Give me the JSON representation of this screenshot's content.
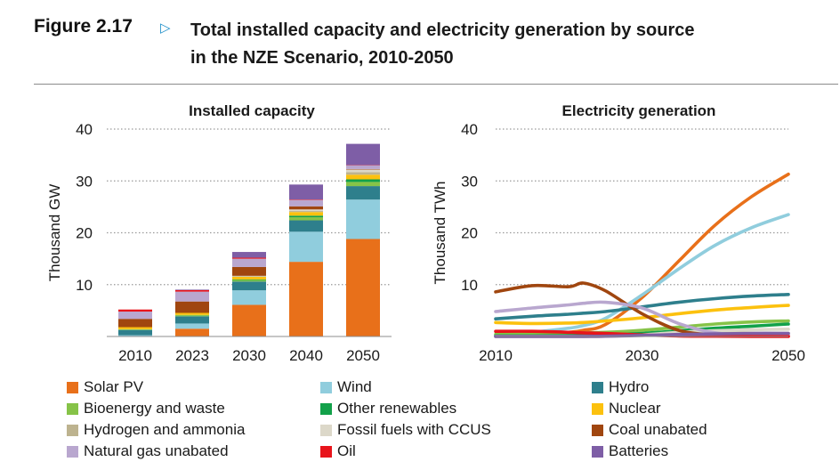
{
  "figure": {
    "label": "Figure 2.17",
    "title_line1": "Total installed capacity and electricity generation by source",
    "title_line2": "in the NZE Scenario, 2010-2050",
    "arrow_color": "#1f8fc9"
  },
  "colors": {
    "Solar PV": "#e8701a",
    "Wind": "#90cddd",
    "Hydro": "#2e7f8c",
    "Bioenergy and waste": "#86c348",
    "Other renewables": "#12a14a",
    "Nuclear": "#fcc10e",
    "Hydrogen and ammonia": "#bdb38f",
    "Fossil fuels with CCUS": "#dcd8c9",
    "Coal unabated": "#a0460f",
    "Natural gas unabated": "#b9a7cf",
    "Oil": "#e8141b",
    "Batteries": "#7e5ea6"
  },
  "legend": [
    "Solar PV",
    "Wind",
    "Hydro",
    "Bioenergy and waste",
    "Other renewables",
    "Nuclear",
    "Hydrogen and ammonia",
    "Fossil fuels with CCUS",
    "Coal unabated",
    "Natural gas unabated",
    "Oil",
    "Batteries"
  ],
  "chart_data": [
    {
      "type": "bar",
      "stacked": true,
      "title": "Installed capacity",
      "ylabel": "Thousand GW",
      "ylim": [
        0,
        40
      ],
      "yticks": [
        10,
        20,
        30,
        40
      ],
      "grid": "dotted horizontal",
      "categories": [
        "2010",
        "2023",
        "2030",
        "2040",
        "2050"
      ],
      "series": [
        {
          "name": "Solar PV",
          "values": [
            0.05,
            1.5,
            6.1,
            14.4,
            18.8
          ]
        },
        {
          "name": "Wind",
          "values": [
            0.2,
            1.0,
            2.8,
            5.8,
            7.6
          ]
        },
        {
          "name": "Hydro",
          "values": [
            1.0,
            1.4,
            1.7,
            2.2,
            2.6
          ]
        },
        {
          "name": "Bioenergy and waste",
          "values": [
            0.1,
            0.2,
            0.3,
            0.6,
            0.8
          ]
        },
        {
          "name": "Other renewables",
          "values": [
            0.05,
            0.05,
            0.1,
            0.3,
            0.5
          ]
        },
        {
          "name": "Nuclear",
          "values": [
            0.4,
            0.4,
            0.5,
            0.7,
            0.9
          ]
        },
        {
          "name": "Hydrogen and ammonia",
          "values": [
            0.0,
            0.0,
            0.1,
            0.2,
            0.5
          ]
        },
        {
          "name": "Fossil fuels with CCUS",
          "values": [
            0.0,
            0.0,
            0.1,
            0.3,
            0.5
          ]
        },
        {
          "name": "Coal unabated",
          "values": [
            1.6,
            2.2,
            1.7,
            0.6,
            0.1
          ]
        },
        {
          "name": "Natural gas unabated",
          "values": [
            1.4,
            1.9,
            1.6,
            1.2,
            0.7
          ]
        },
        {
          "name": "Oil",
          "values": [
            0.4,
            0.3,
            0.2,
            0.1,
            0.05
          ]
        },
        {
          "name": "Batteries",
          "values": [
            0.0,
            0.1,
            1.1,
            2.9,
            4.1
          ]
        }
      ]
    },
    {
      "type": "line",
      "title": "Electricity generation",
      "ylabel": "Thousand TWh",
      "xlim": [
        2010,
        2050
      ],
      "ylim": [
        0,
        40
      ],
      "yticks": [
        10,
        20,
        30,
        40
      ],
      "xticks": [
        2010,
        2030,
        2050
      ],
      "grid": "dotted horizontal",
      "x": [
        2010,
        2015,
        2020,
        2022,
        2025,
        2030,
        2035,
        2040,
        2045,
        2050
      ],
      "series": [
        {
          "name": "Solar PV",
          "values": [
            0.03,
            0.25,
            0.8,
            1.2,
            2.3,
            7.5,
            14.5,
            21.5,
            27.0,
            31.3
          ]
        },
        {
          "name": "Wind",
          "values": [
            0.3,
            0.8,
            1.6,
            2.1,
            3.5,
            8.0,
            13.0,
            17.6,
            21.0,
            23.5
          ]
        },
        {
          "name": "Hydro",
          "values": [
            3.4,
            3.9,
            4.3,
            4.5,
            4.8,
            5.7,
            6.6,
            7.3,
            7.8,
            8.1
          ]
        },
        {
          "name": "Bioenergy and waste",
          "values": [
            0.4,
            0.5,
            0.6,
            0.7,
            0.8,
            1.2,
            1.8,
            2.4,
            2.8,
            3.0
          ]
        },
        {
          "name": "Other renewables",
          "values": [
            0.1,
            0.1,
            0.15,
            0.2,
            0.3,
            0.6,
            1.1,
            1.6,
            2.0,
            2.4
          ]
        },
        {
          "name": "Nuclear",
          "values": [
            2.7,
            2.5,
            2.6,
            2.7,
            3.0,
            3.6,
            4.4,
            5.1,
            5.6,
            6.0
          ]
        },
        {
          "name": "Hydrogen and ammonia",
          "values": [
            0.0,
            0.0,
            0.0,
            0.0,
            0.05,
            0.3,
            0.5,
            0.6,
            0.6,
            0.6
          ]
        },
        {
          "name": "Fossil fuels with CCUS",
          "values": [
            0.0,
            0.0,
            0.0,
            0.0,
            0.05,
            0.3,
            0.8,
            1.1,
            1.3,
            1.4
          ]
        },
        {
          "name": "Coal unabated",
          "values": [
            8.6,
            9.8,
            9.6,
            10.3,
            8.8,
            4.4,
            1.2,
            0.3,
            0.15,
            0.1
          ]
        },
        {
          "name": "Natural gas unabated",
          "values": [
            4.8,
            5.5,
            6.1,
            6.4,
            6.6,
            5.5,
            2.5,
            0.7,
            0.3,
            0.2
          ]
        },
        {
          "name": "Oil",
          "values": [
            1.0,
            1.0,
            0.8,
            0.7,
            0.6,
            0.3,
            0.1,
            0.05,
            0.02,
            0.0
          ]
        },
        {
          "name": "Batteries",
          "values": [
            0.0,
            0.0,
            0.0,
            0.02,
            0.05,
            0.2,
            0.4,
            0.5,
            0.6,
            0.6
          ]
        }
      ]
    }
  ]
}
